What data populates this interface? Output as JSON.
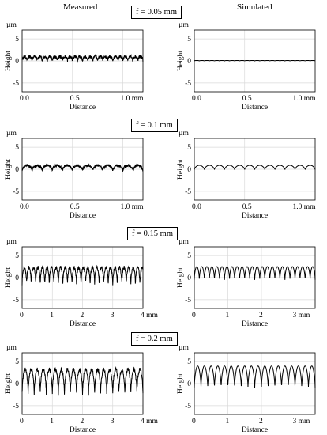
{
  "headers": {
    "left": "Measured",
    "right": "Simulated"
  },
  "rows": [
    {
      "feed_label": "f = 0.05 mm"
    },
    {
      "feed_label": "f = 0.1 mm"
    },
    {
      "feed_label": "f = 0.15 mm"
    },
    {
      "feed_label": "f = 0.2 mm"
    }
  ],
  "chart_data": [
    {
      "type": "line",
      "panel": "Measured f = 0.05 mm",
      "xlabel": "Distance",
      "ylabel": "Height",
      "y_unit": "µm",
      "x_unit": "mm",
      "xlim": [
        0,
        1.2
      ],
      "ylim": [
        -7,
        7
      ],
      "xticks": [
        0,
        0.5,
        1.0
      ],
      "xtick_labels": [
        "0.0",
        "0.5",
        "1.0 mm"
      ],
      "yticks": [
        5,
        0,
        -5
      ],
      "ytick_labels": [
        "5",
        "0",
        "-5"
      ],
      "profile": {
        "period_mm": 0.05,
        "min": 0,
        "max": 1.0,
        "noise": 0.35
      },
      "grid": true
    },
    {
      "type": "line",
      "panel": "Simulated f = 0.05 mm",
      "xlabel": "Distance",
      "ylabel": "Height",
      "y_unit": "µm",
      "x_unit": "mm",
      "xlim": [
        0,
        1.2
      ],
      "ylim": [
        -7,
        7
      ],
      "xticks": [
        0,
        0.5,
        1.0
      ],
      "xtick_labels": [
        "0.0",
        "0.5",
        "1.0 mm"
      ],
      "yticks": [
        5,
        0,
        -5
      ],
      "ytick_labels": [
        "5",
        "0",
        "-5"
      ],
      "profile": {
        "period_mm": 0.05,
        "min": 0,
        "max": 0.1,
        "noise": 0
      },
      "grid": true
    },
    {
      "type": "line",
      "panel": "Measured f = 0.1 mm",
      "xlabel": "Distance",
      "ylabel": "Height",
      "y_unit": "µm",
      "x_unit": "mm",
      "xlim": [
        0,
        1.2
      ],
      "ylim": [
        -7,
        7
      ],
      "xticks": [
        0,
        0.5,
        1.0
      ],
      "xtick_labels": [
        "0.0",
        "0.5",
        "1.0 mm"
      ],
      "yticks": [
        5,
        0,
        -5
      ],
      "ytick_labels": [
        "5",
        "0",
        "-5"
      ],
      "profile": {
        "period_mm": 0.1,
        "min": -0.3,
        "max": 0.9,
        "noise": 0.3
      },
      "grid": true
    },
    {
      "type": "line",
      "panel": "Simulated f = 0.1 mm",
      "xlabel": "Distance",
      "ylabel": "Height",
      "y_unit": "µm",
      "x_unit": "mm",
      "xlim": [
        0,
        1.2
      ],
      "ylim": [
        -7,
        7
      ],
      "xticks": [
        0,
        0.5,
        1.0
      ],
      "xtick_labels": [
        "0.0",
        "0.5",
        "1.0 mm"
      ],
      "yticks": [
        5,
        0,
        -5
      ],
      "ytick_labels": [
        "5",
        "0",
        "-5"
      ],
      "profile": {
        "period_mm": 0.1,
        "min": -0.1,
        "max": 0.9,
        "noise": 0
      },
      "grid": true
    },
    {
      "type": "line",
      "panel": "Measured f = 0.15 mm",
      "xlabel": "Distance",
      "ylabel": "Height",
      "y_unit": "µm",
      "x_unit": "mm",
      "xlim": [
        0,
        4
      ],
      "ylim": [
        -7,
        7
      ],
      "xticks": [
        0,
        1,
        2,
        3,
        4
      ],
      "xtick_labels": [
        "0",
        "1",
        "2",
        "3",
        "4 mm"
      ],
      "yticks": [
        5,
        0,
        -5
      ],
      "ytick_labels": [
        "5",
        "0",
        "-5"
      ],
      "profile": {
        "period_mm": 0.15,
        "min": -1.5,
        "max": 2.3,
        "noise": 0.4
      },
      "grid": true
    },
    {
      "type": "line",
      "panel": "Simulated f = 0.15 mm",
      "xlabel": "Distance",
      "ylabel": "Height",
      "y_unit": "µm",
      "x_unit": "mm",
      "xlim": [
        0,
        3.6
      ],
      "ylim": [
        -7,
        7
      ],
      "xticks": [
        0,
        1,
        2,
        3
      ],
      "xtick_labels": [
        "0",
        "1",
        "2",
        "3 mm"
      ],
      "yticks": [
        5,
        0,
        -5
      ],
      "ytick_labels": [
        "5",
        "0",
        "-5"
      ],
      "profile": {
        "period_mm": 0.15,
        "min": -0.5,
        "max": 2.5,
        "noise": 0
      },
      "grid": true
    },
    {
      "type": "line",
      "panel": "Measured f = 0.2 mm",
      "xlabel": "Distance",
      "ylabel": "Height",
      "y_unit": "µm",
      "x_unit": "mm",
      "xlim": [
        0,
        4
      ],
      "ylim": [
        -7,
        7
      ],
      "xticks": [
        0,
        1,
        2,
        3,
        4
      ],
      "xtick_labels": [
        "0",
        "1",
        "2",
        "3",
        "4 mm"
      ],
      "yticks": [
        5,
        0,
        -5
      ],
      "ytick_labels": [
        "5",
        "0",
        "-5"
      ],
      "profile": {
        "period_mm": 0.2,
        "min": -2.3,
        "max": 3.2,
        "noise": 0.45
      },
      "grid": true
    },
    {
      "type": "line",
      "panel": "Simulated f = 0.2 mm",
      "xlabel": "Distance",
      "ylabel": "Height",
      "y_unit": "µm",
      "x_unit": "mm",
      "xlim": [
        0,
        3.6
      ],
      "ylim": [
        -7,
        7
      ],
      "xticks": [
        0,
        1,
        2,
        3
      ],
      "xtick_labels": [
        "0",
        "1",
        "2",
        "3 mm"
      ],
      "yticks": [
        5,
        0,
        -5
      ],
      "ytick_labels": [
        "5",
        "0",
        "-5"
      ],
      "profile": {
        "period_mm": 0.2,
        "min": -1.0,
        "max": 4.0,
        "noise": 0
      },
      "grid": true
    }
  ]
}
